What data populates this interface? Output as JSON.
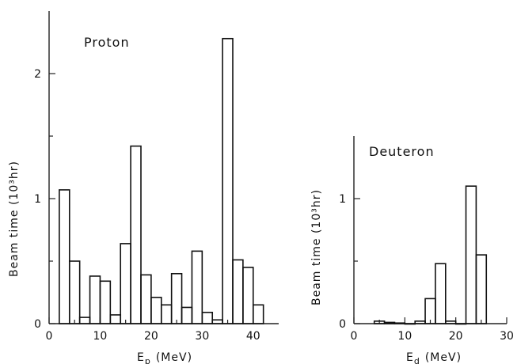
{
  "chart_data": [
    {
      "type": "histogram",
      "title": "Proton",
      "xlabel": "E",
      "xlabel_sub": "p",
      "xlabel_unit": "(MeV)",
      "ylabel": "Beam time  (10³hr)",
      "xlim": [
        0,
        45
      ],
      "ylim": [
        0,
        2.5
      ],
      "xticks": [
        0,
        10,
        20,
        30,
        40
      ],
      "yticks": [
        0,
        1,
        2
      ],
      "bins": [
        {
          "x0": 2,
          "x1": 4,
          "value": 1.07
        },
        {
          "x0": 4,
          "x1": 6,
          "value": 0.5
        },
        {
          "x0": 6,
          "x1": 8,
          "value": 0.05
        },
        {
          "x0": 8,
          "x1": 10,
          "value": 0.38
        },
        {
          "x0": 10,
          "x1": 12,
          "value": 0.34
        },
        {
          "x0": 12,
          "x1": 14,
          "value": 0.07
        },
        {
          "x0": 14,
          "x1": 16,
          "value": 0.64
        },
        {
          "x0": 16,
          "x1": 18,
          "value": 1.42
        },
        {
          "x0": 18,
          "x1": 20,
          "value": 0.39
        },
        {
          "x0": 20,
          "x1": 22,
          "value": 0.21
        },
        {
          "x0": 22,
          "x1": 24,
          "value": 0.15
        },
        {
          "x0": 24,
          "x1": 26,
          "value": 0.4
        },
        {
          "x0": 26,
          "x1": 28,
          "value": 0.13
        },
        {
          "x0": 28,
          "x1": 30,
          "value": 0.58
        },
        {
          "x0": 30,
          "x1": 32,
          "value": 0.09
        },
        {
          "x0": 32,
          "x1": 34,
          "value": 0.03
        },
        {
          "x0": 34,
          "x1": 36,
          "value": 2.28
        },
        {
          "x0": 36,
          "x1": 38,
          "value": 0.51
        },
        {
          "x0": 38,
          "x1": 40,
          "value": 0.45
        },
        {
          "x0": 40,
          "x1": 42,
          "value": 0.15
        }
      ]
    },
    {
      "type": "histogram",
      "title": "Deuteron",
      "xlabel": "E",
      "xlabel_sub": "d",
      "xlabel_unit": "(MeV)",
      "ylabel": "Beam time  (10³hr)",
      "xlim": [
        0,
        30
      ],
      "ylim": [
        0,
        1.5
      ],
      "xticks": [
        0,
        10,
        20,
        30
      ],
      "yticks": [
        0,
        1
      ],
      "bins": [
        {
          "x0": 4,
          "x1": 6,
          "value": 0.02
        },
        {
          "x0": 6,
          "x1": 8,
          "value": 0.01
        },
        {
          "x0": 8,
          "x1": 10,
          "value": 0.005
        },
        {
          "x0": 10,
          "x1": 12,
          "value": 0.0
        },
        {
          "x0": 12,
          "x1": 14,
          "value": 0.02
        },
        {
          "x0": 14,
          "x1": 16,
          "value": 0.2
        },
        {
          "x0": 16,
          "x1": 18,
          "value": 0.48
        },
        {
          "x0": 18,
          "x1": 20,
          "value": 0.02
        },
        {
          "x0": 20,
          "x1": 22,
          "value": 0.0
        },
        {
          "x0": 22,
          "x1": 24,
          "value": 1.1
        },
        {
          "x0": 24,
          "x1": 26,
          "value": 0.55
        }
      ]
    }
  ]
}
